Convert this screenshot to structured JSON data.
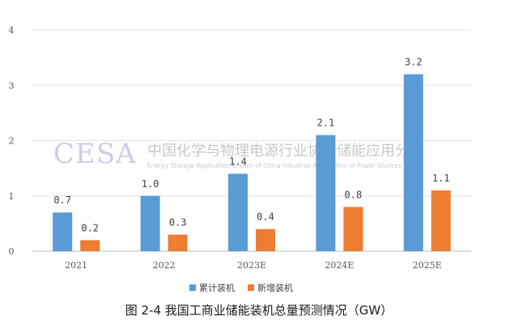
{
  "caption": "图 2-4 我国工商业储能装机总量预测情况（GW）",
  "watermark": {
    "logo": "CESA",
    "org_cn": "中国化学与物理电源行业协会储能应用分会",
    "org_en": "Energy Storage Application Branch of China Industrial Association of Power Sources"
  },
  "chart_data": {
    "type": "bar",
    "title": "",
    "xlabel": "",
    "ylabel": "",
    "categories": [
      "2021",
      "2022",
      "2023E",
      "2024E",
      "2025E"
    ],
    "ylim": [
      0,
      4
    ],
    "yticks": [
      "0",
      "1",
      "2",
      "3",
      "4"
    ],
    "grid": true,
    "legend_position": "bottom",
    "series": [
      {
        "name": "累计装机",
        "color": "#5b9bd5",
        "values": [
          0.7,
          1.0,
          1.4,
          2.1,
          3.2
        ],
        "labels": [
          "0.7",
          "1.0",
          "1.4",
          "2.1",
          "3.2"
        ]
      },
      {
        "name": "新增装机",
        "color": "#ed7d31",
        "values": [
          0.2,
          0.3,
          0.4,
          0.8,
          1.1
        ],
        "labels": [
          "0.2",
          "0.3",
          "0.4",
          "0.8",
          "1.1"
        ]
      }
    ]
  }
}
